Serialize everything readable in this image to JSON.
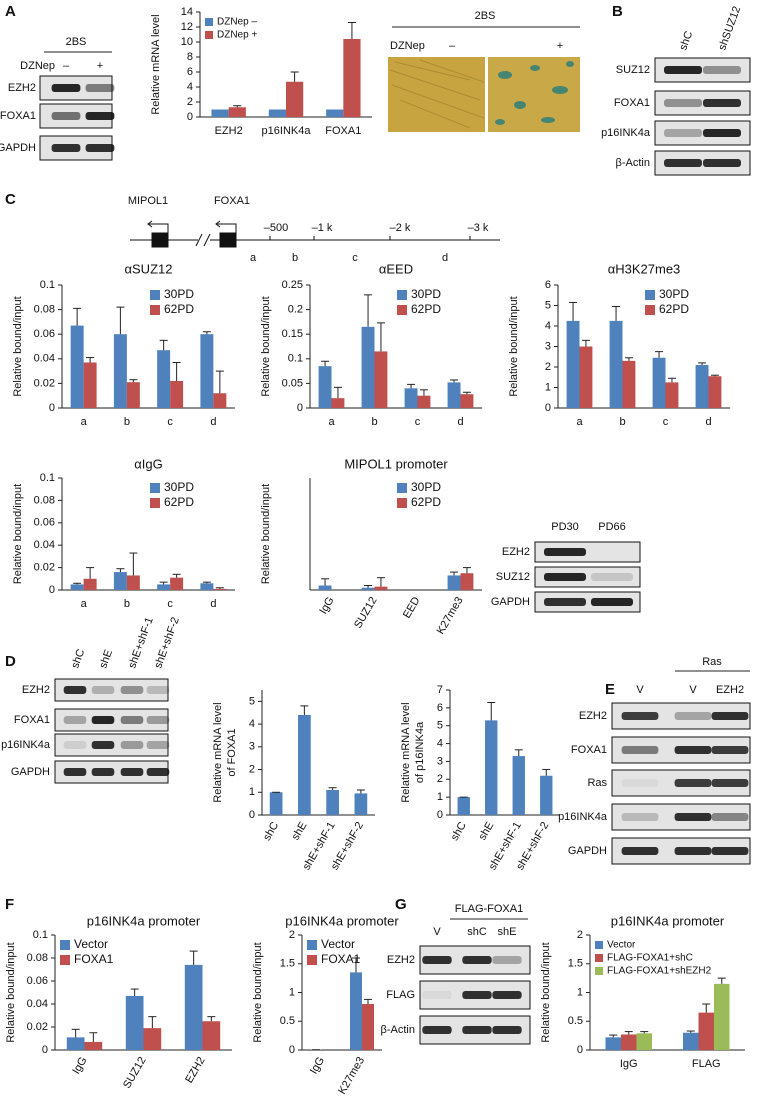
{
  "panel_labels": [
    "A",
    "B",
    "C",
    "D",
    "E",
    "F",
    "G"
  ],
  "micrograph": {
    "header": "2BS",
    "treatment": "DZNep",
    "lanes": [
      "–",
      "+"
    ]
  },
  "diagram": {
    "genes": [
      "MIPOL1",
      "FOXA1"
    ],
    "positions": [
      "–500",
      "–1 k",
      "–2 k",
      "–3 k"
    ],
    "regions": [
      "a",
      "b",
      "c",
      "d"
    ]
  },
  "blots": [
    {
      "header": "2BS",
      "treatment": "DZNep",
      "lanes": [
        "–",
        "+"
      ],
      "rows": [
        "EZH2",
        "FOXA1",
        "GAPDH"
      ]
    },
    {
      "lanes": [
        "shC",
        "shSUZ12"
      ],
      "rows": [
        "SUZ12",
        "FOXA1",
        "p16INK4a",
        "β-Actin"
      ]
    },
    {
      "lanes": [
        "PD30",
        "PD66"
      ],
      "rows": [
        "EZH2",
        "SUZ12",
        "GAPDH"
      ]
    },
    {
      "lanes": [
        "shC",
        "shE",
        "shE+shF-1",
        "shE+shF-2"
      ],
      "rows": [
        "EZH2",
        "FOXA1",
        "p16INK4a",
        "GAPDH"
      ]
    },
    {
      "header": "Ras",
      "lanes": [
        "V",
        "V",
        "EZH2"
      ],
      "rows": [
        "EZH2",
        "FOXA1",
        "Ras",
        "p16INK4a",
        "GAPDH"
      ]
    },
    {
      "header": "FLAG-FOXA1",
      "lanes": [
        "V",
        "shC",
        "shE"
      ],
      "rows": [
        "EZH2",
        "FLAG",
        "β-Actin"
      ]
    }
  ],
  "chart_data": [
    {
      "type": "bar",
      "y_label": "Relative mRNA level",
      "categories": [
        "EZH2",
        "p16INK4a",
        "FOXA1"
      ],
      "series": [
        {
          "name": "DZNep –",
          "color": "#4f81bd",
          "values": [
            1,
            1,
            1
          ]
        },
        {
          "name": "DZNep +",
          "color": "#c0504d",
          "values": [
            1.3,
            4.7,
            10.4
          ],
          "errors": [
            0.2,
            1.3,
            2.2
          ]
        }
      ],
      "ylim": [
        0,
        14
      ],
      "yticks": [
        0,
        2,
        4,
        6,
        8,
        10,
        12,
        14
      ],
      "legend": "upper left"
    },
    {
      "type": "bar",
      "title": "αSUZ12",
      "y_label": "Relative bound/input",
      "categories": [
        "a",
        "b",
        "c",
        "d"
      ],
      "series": [
        {
          "name": "30PD",
          "color": "#4f81bd",
          "values": [
            0.067,
            0.06,
            0.047,
            0.06
          ],
          "errors": [
            0.014,
            0.022,
            0.008,
            0.002
          ]
        },
        {
          "name": "62PD",
          "color": "#c0504d",
          "values": [
            0.037,
            0.021,
            0.022,
            0.012
          ],
          "errors": [
            0.004,
            0.002,
            0.015,
            0.018
          ]
        }
      ],
      "ylim": [
        0,
        0.1
      ],
      "yticks": [
        0,
        0.02,
        0.04,
        0.06,
        0.08,
        0.1
      ],
      "legend": "upper right"
    },
    {
      "type": "bar",
      "title": "αEED",
      "y_label": "Relative bound/input",
      "categories": [
        "a",
        "b",
        "c",
        "d"
      ],
      "series": [
        {
          "name": "30PD",
          "color": "#4f81bd",
          "values": [
            0.085,
            0.165,
            0.04,
            0.052
          ],
          "errors": [
            0.01,
            0.065,
            0.008,
            0.005
          ]
        },
        {
          "name": "62PD",
          "color": "#c0504d",
          "values": [
            0.02,
            0.115,
            0.025,
            0.028
          ],
          "errors": [
            0.022,
            0.058,
            0.012,
            0.004
          ]
        }
      ],
      "ylim": [
        0,
        0.25
      ],
      "yticks": [
        0,
        0.05,
        0.1,
        0.15,
        0.2,
        0.25
      ],
      "legend": "upper right"
    },
    {
      "type": "bar",
      "title": "αH3K27me3",
      "y_label": "Relative bound/input",
      "categories": [
        "a",
        "b",
        "c",
        "d"
      ],
      "series": [
        {
          "name": "30PD",
          "color": "#4f81bd",
          "values": [
            4.25,
            4.25,
            2.45,
            2.1
          ],
          "errors": [
            0.9,
            0.7,
            0.3,
            0.1
          ]
        },
        {
          "name": "62PD",
          "color": "#c0504d",
          "values": [
            3.0,
            2.3,
            1.25,
            1.55
          ],
          "errors": [
            0.3,
            0.15,
            0.2,
            0.05
          ]
        }
      ],
      "ylim": [
        0,
        6
      ],
      "yticks": [
        0,
        1,
        2,
        3,
        4,
        5,
        6
      ],
      "legend": "upper right"
    },
    {
      "type": "bar",
      "title": "αIgG",
      "y_label": "Relative bound/input",
      "categories": [
        "a",
        "b",
        "c",
        "d"
      ],
      "series": [
        {
          "name": "30PD",
          "color": "#4f81bd",
          "values": [
            0.005,
            0.016,
            0.005,
            0.006
          ],
          "errors": [
            0.001,
            0.003,
            0.002,
            0.001
          ]
        },
        {
          "name": "62PD",
          "color": "#c0504d",
          "values": [
            0.01,
            0.013,
            0.011,
            0.001
          ],
          "errors": [
            0.01,
            0.02,
            0.003,
            0.001
          ]
        }
      ],
      "ylim": [
        0,
        0.1
      ],
      "yticks": [
        0,
        0.02,
        0.04,
        0.06,
        0.08,
        0.1
      ],
      "legend": "upper right"
    },
    {
      "type": "bar",
      "title": "MIPOL1 promoter",
      "y_label": "Relative bound/input",
      "categories": [
        "IgG",
        "SUZ12",
        "EED",
        "K27me3"
      ],
      "series": [
        {
          "name": "30PD",
          "color": "#4f81bd",
          "values": [
            0.04,
            0.02,
            0,
            0.13
          ],
          "errors": [
            0.06,
            0.02,
            0,
            0.03
          ]
        },
        {
          "name": "62PD",
          "color": "#c0504d",
          "values": [
            0,
            0.03,
            0,
            0.15
          ],
          "errors": [
            0,
            0.08,
            0,
            0.05
          ]
        }
      ],
      "ylim": [
        0,
        1
      ],
      "yticks": [],
      "legend": "upper right"
    },
    {
      "type": "bar",
      "y_label": [
        "Relative mRNA level",
        "of FOXA1"
      ],
      "categories": [
        "shC",
        "shE",
        "shE+shF-1",
        "shE+shF-2"
      ],
      "series": [
        {
          "color": "#4f81bd",
          "values": [
            1,
            4.4,
            1.1,
            0.95
          ],
          "errors": [
            0,
            0.4,
            0.1,
            0.15
          ]
        }
      ],
      "ylim": [
        0,
        5.5
      ],
      "yticks": [
        0,
        1,
        2,
        3,
        4,
        5
      ]
    },
    {
      "type": "bar",
      "y_label": [
        "Relative mRNA level",
        "of p16INK4a"
      ],
      "categories": [
        "shC",
        "shE",
        "shE+shF-1",
        "shE+shF-2"
      ],
      "series": [
        {
          "color": "#4f81bd",
          "values": [
            1,
            5.3,
            3.3,
            2.2
          ],
          "errors": [
            0,
            1.0,
            0.35,
            0.35
          ]
        }
      ],
      "ylim": [
        0,
        7
      ],
      "yticks": [
        0,
        1,
        2,
        3,
        4,
        5,
        6,
        7
      ]
    },
    {
      "type": "bar",
      "title": "p16INK4a promoter",
      "y_label": "Relative bound/input",
      "categories": [
        "IgG",
        "SUZ12",
        "EZH2"
      ],
      "series": [
        {
          "name": "Vector",
          "color": "#4f81bd",
          "values": [
            0.011,
            0.047,
            0.074
          ],
          "errors": [
            0.007,
            0.006,
            0.012
          ]
        },
        {
          "name": "FOXA1",
          "color": "#c0504d",
          "values": [
            0.007,
            0.019,
            0.025
          ],
          "errors": [
            0.008,
            0.01,
            0.004
          ]
        }
      ],
      "ylim": [
        0,
        0.1
      ],
      "yticks": [
        0,
        0.02,
        0.04,
        0.06,
        0.08,
        0.1
      ],
      "legend": "upper left"
    },
    {
      "type": "bar",
      "title": "p16INK4a promoter",
      "y_label": "Relative bound/input",
      "categories": [
        "IgG",
        "K27me3"
      ],
      "series": [
        {
          "name": "Vector",
          "color": "#4f81bd",
          "values": [
            0.005,
            1.35
          ],
          "errors": [
            0,
            0.25
          ]
        },
        {
          "name": "FOXA1",
          "color": "#c0504d",
          "values": [
            0,
            0.8
          ],
          "errors": [
            0,
            0.08
          ]
        }
      ],
      "ylim": [
        0,
        2
      ],
      "yticks": [
        0,
        0.5,
        1,
        1.5,
        2
      ],
      "legend": "upper left"
    },
    {
      "type": "bar",
      "title": "p16INK4a promoter",
      "y_label": "Relative bound/input",
      "categories": [
        "IgG",
        "FLAG"
      ],
      "series": [
        {
          "name": "Vector",
          "color": "#4f81bd",
          "values": [
            0.22,
            0.3
          ],
          "errors": [
            0.04,
            0.03
          ]
        },
        {
          "name": "FLAG-FOXA1+shC",
          "color": "#c0504d",
          "values": [
            0.27,
            0.65
          ],
          "errors": [
            0.05,
            0.15
          ]
        },
        {
          "name": "FLAG-FOXA1+shEZH2",
          "color": "#9bbb59",
          "values": [
            0.29,
            1.15
          ],
          "errors": [
            0.03,
            0.1
          ]
        }
      ],
      "ylim": [
        0,
        2
      ],
      "yticks": [
        0,
        0.5,
        1,
        1.5,
        2
      ],
      "legend": "upper left"
    }
  ]
}
